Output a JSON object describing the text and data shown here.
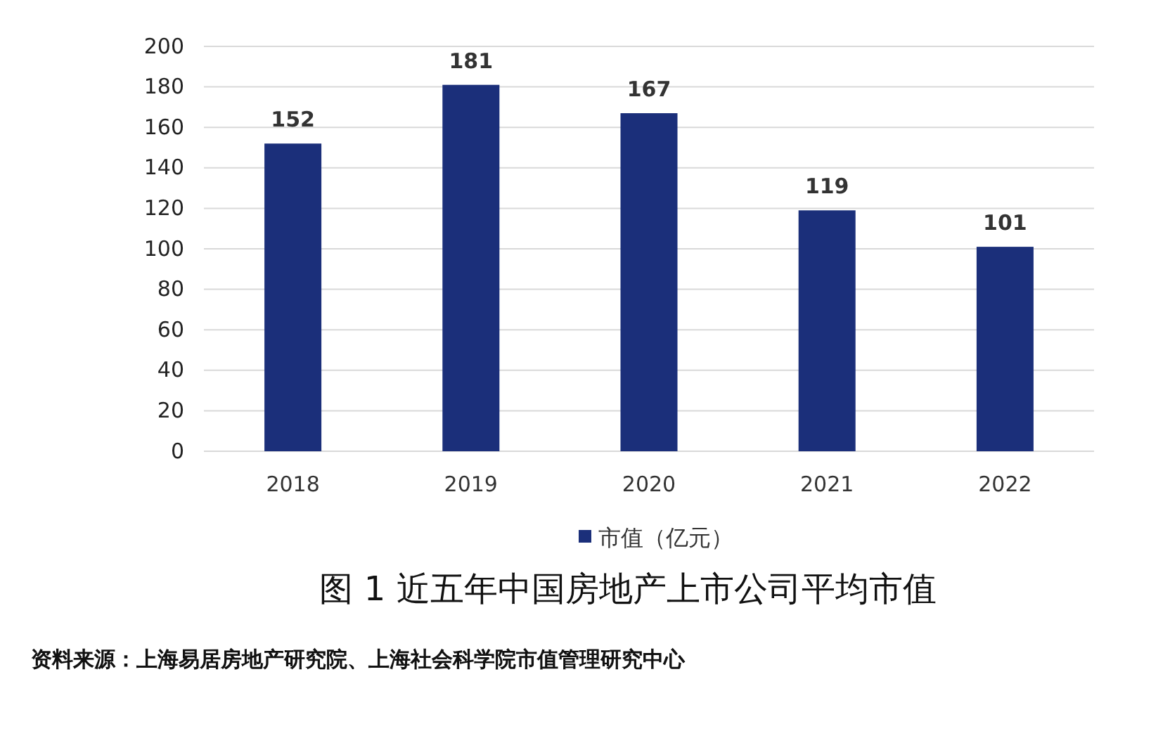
{
  "chart_data": {
    "type": "bar",
    "title": "图 1  近五年中国房地产上市公司平均市值",
    "annotations": [
      "资料来源：上海易居房地产研究院、上海社会科学院市值管理研究中心"
    ],
    "categories": [
      "2018",
      "2019",
      "2020",
      "2021",
      "2022"
    ],
    "series": [
      {
        "name": "市值（亿元）",
        "color": "#1b2f7a",
        "values": [
          152,
          181,
          167,
          119,
          101
        ]
      }
    ],
    "ylim": [
      0,
      200
    ],
    "yticks": [
      0,
      20,
      40,
      60,
      80,
      100,
      120,
      140,
      160,
      180,
      200
    ],
    "grid": "y",
    "legend": "bottom",
    "data_labels": true
  }
}
